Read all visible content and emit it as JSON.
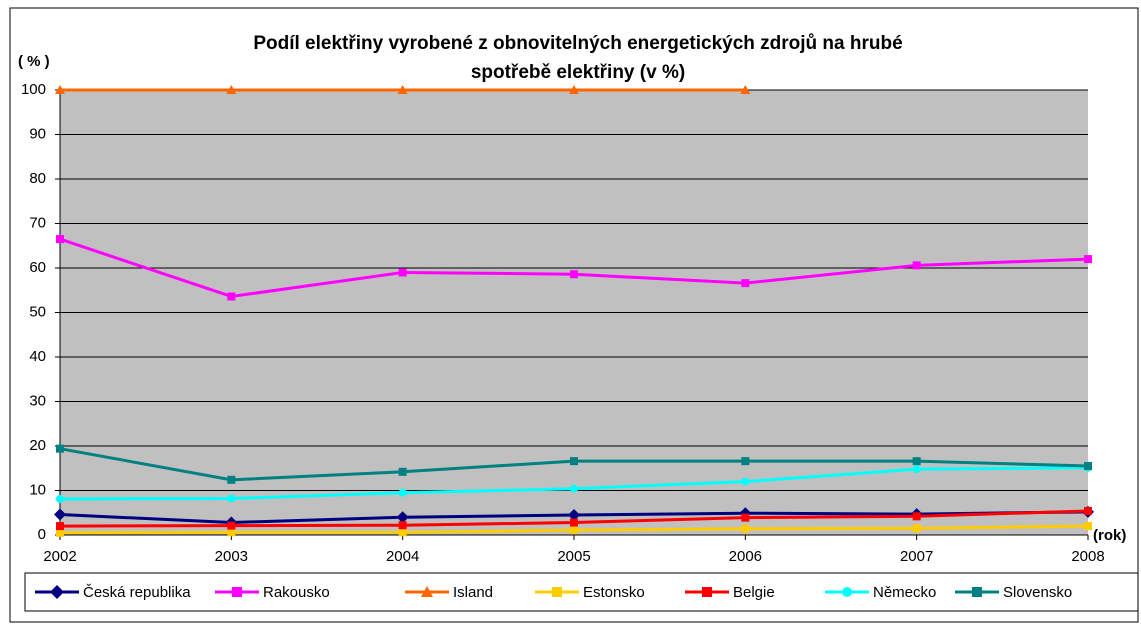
{
  "chart_data": {
    "type": "line",
    "title": "Podíl elektřiny vyrobené z obnovitelných energetických zdrojů na hrubé",
    "subtitle": "spotřebě elektřiny (v %)",
    "y_label": "( % )",
    "x_label": "(rok)",
    "categories": [
      "2002",
      "2003",
      "2004",
      "2005",
      "2006",
      "2007",
      "2008"
    ],
    "ylim": [
      0,
      100
    ],
    "yticks": [
      0,
      10,
      20,
      30,
      40,
      50,
      60,
      70,
      80,
      90,
      100
    ],
    "grid": true,
    "legend": "bottom",
    "series": [
      {
        "name": "Česká republika",
        "color": "#000080",
        "marker": "diamond",
        "values": [
          4.6,
          2.8,
          4.0,
          4.5,
          4.9,
          4.7,
          5.2
        ]
      },
      {
        "name": "Rakousko",
        "color": "#ff00ff",
        "marker": "square",
        "values": [
          66.5,
          53.6,
          59.0,
          58.6,
          56.6,
          60.6,
          62.0
        ]
      },
      {
        "name": "Island",
        "color": "#ff6600",
        "marker": "triangle",
        "values": [
          100,
          100,
          100,
          100,
          100,
          null,
          null
        ]
      },
      {
        "name": "Estonsko",
        "color": "#ffcc00",
        "marker": "square",
        "values": [
          0.5,
          0.6,
          0.6,
          1.1,
          1.4,
          1.5,
          2.0
        ]
      },
      {
        "name": "Belgie",
        "color": "#ff0000",
        "marker": "square",
        "values": [
          2.0,
          2.1,
          2.2,
          2.8,
          3.9,
          4.2,
          5.4
        ]
      },
      {
        "name": "Německo",
        "color": "#00ffff",
        "marker": "circle",
        "values": [
          8.1,
          8.2,
          9.5,
          10.4,
          12.0,
          14.8,
          15.1
        ]
      },
      {
        "name": "Slovensko",
        "color": "#008080",
        "marker": "square",
        "values": [
          19.4,
          12.4,
          14.2,
          16.6,
          16.6,
          16.6,
          15.5
        ]
      }
    ]
  }
}
